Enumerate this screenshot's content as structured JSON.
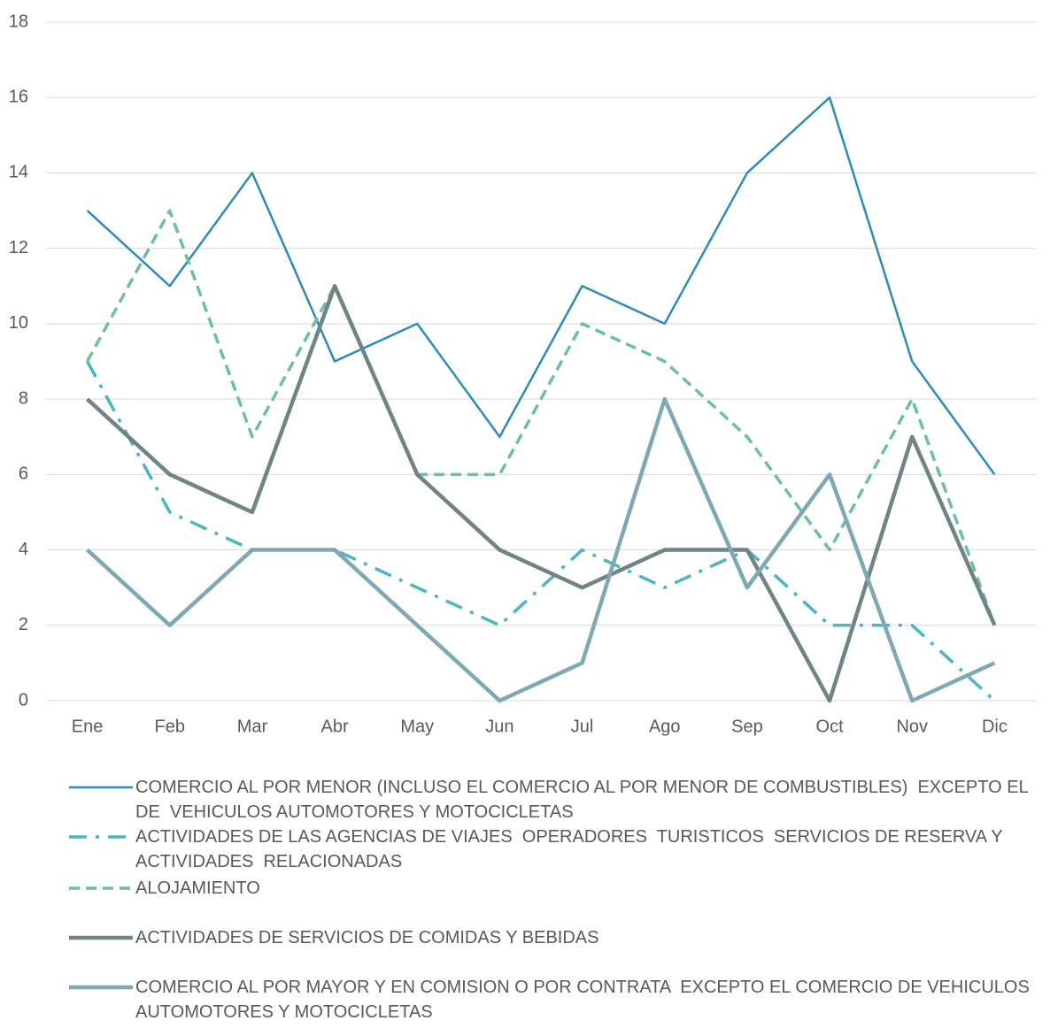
{
  "chart_data": {
    "type": "line",
    "categories": [
      "Ene",
      "Feb",
      "Mar",
      "Abr",
      "May",
      "Jun",
      "Jul",
      "Ago",
      "Sep",
      "Oct",
      "Nov",
      "Dic"
    ],
    "series": [
      {
        "name": "COMERCIO AL POR MENOR (INCLUSO EL COMERCIO AL POR MENOR DE COMBUSTIBLES)  EXCEPTO EL DE  VEHICULOS AUTOMOTORES Y MOTOCICLETAS",
        "color": "#2e8bb8",
        "style": "solid",
        "width": 2.5,
        "values": [
          13,
          11,
          14,
          9,
          10,
          7,
          11,
          10,
          14,
          16,
          9,
          6
        ]
      },
      {
        "name": "ACTIVIDADES DE LAS AGENCIAS DE VIAJES  OPERADORES  TURISTICOS  SERVICIOS DE RESERVA Y ACTIVIDADES  RELACIONADAS",
        "color": "#4bb5c1",
        "style": "dashdot",
        "width": 3.5,
        "values": [
          9,
          5,
          4,
          4,
          3,
          2,
          4,
          3,
          4,
          2,
          2,
          0
        ]
      },
      {
        "name": "ALOJAMIENTO",
        "color": "#6dbf9e",
        "style": "dashed",
        "width": 3.5,
        "values": [
          9,
          13,
          7,
          11,
          6,
          6,
          10,
          9,
          7,
          4,
          8,
          2
        ]
      },
      {
        "name": "ACTIVIDADES DE SERVICIOS DE COMIDAS Y BEBIDAS",
        "color": "#6f8485",
        "style": "solid",
        "width": 4.5,
        "values": [
          8,
          6,
          5,
          11,
          6,
          4,
          3,
          4,
          4,
          0,
          7,
          2
        ]
      },
      {
        "name": "COMERCIO AL POR MAYOR Y EN COMISION O POR CONTRATA  EXCEPTO EL COMERCIO DE VEHICULOS AUTOMOTORES Y MOTOCICLETAS",
        "color": "#7fa8b5",
        "style": "solid",
        "width": 4.5,
        "values": [
          4,
          2,
          4,
          4,
          2,
          0,
          1,
          8,
          3,
          6,
          0,
          1
        ]
      }
    ],
    "ylim": [
      0,
      18
    ],
    "yticks": [
      0,
      2,
      4,
      6,
      8,
      10,
      12,
      14,
      16,
      18
    ],
    "grid": true,
    "legend": "bottom"
  }
}
